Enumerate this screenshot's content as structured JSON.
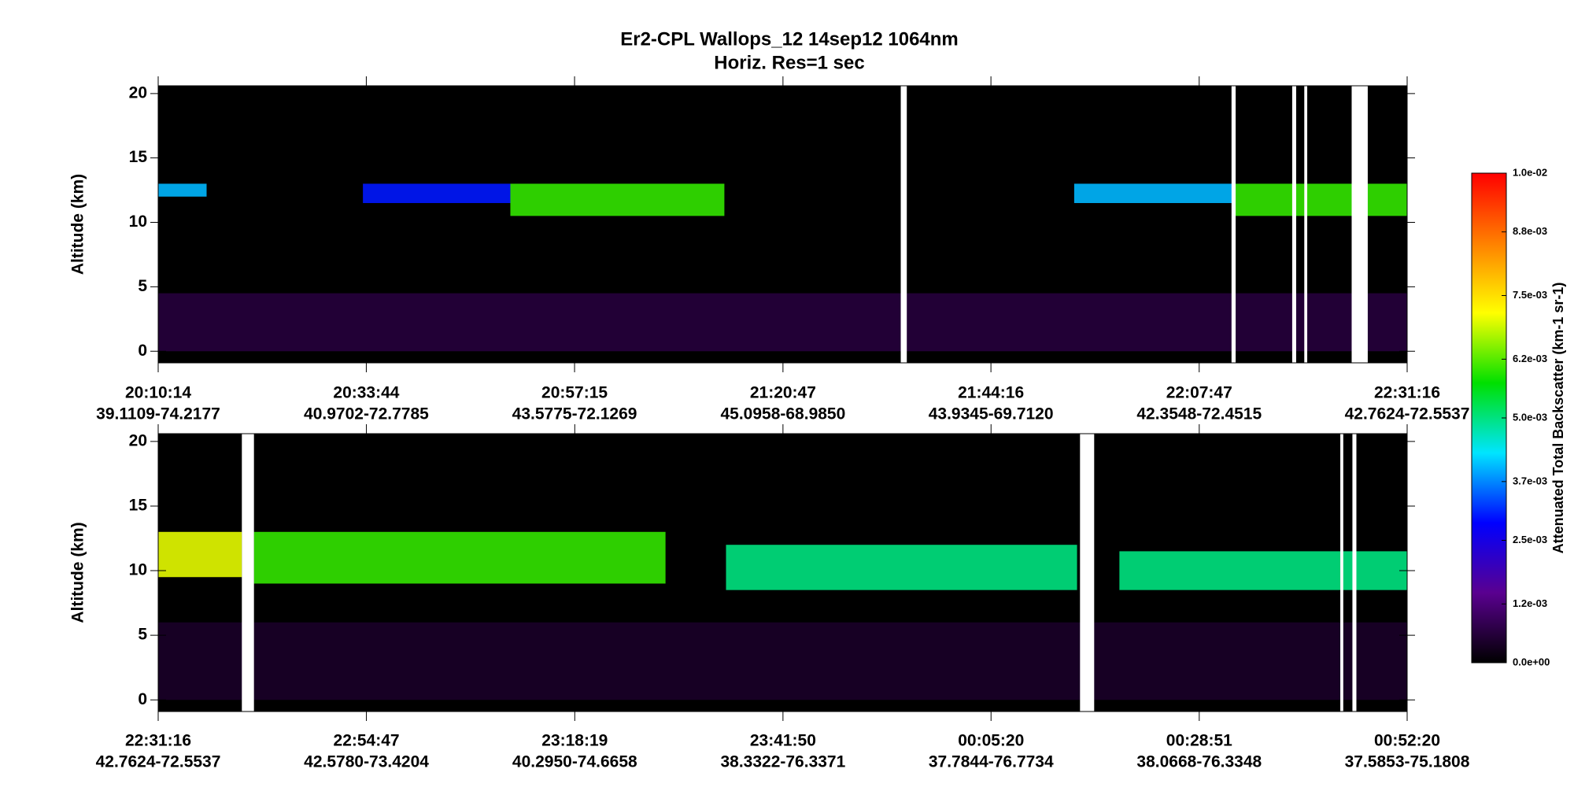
{
  "chart_data": [
    {
      "type": "curtain",
      "title": "Er2-CPL  Wallops_12  14sep12  1064nm",
      "subtitle": "Horiz. Res=1 sec",
      "ylabel": "Altitude (km)",
      "xlim": [
        72614,
        81076
      ],
      "ylim": [
        -0.9,
        20.6
      ],
      "yticks": [
        0,
        5,
        10,
        15,
        20
      ],
      "xticks": [
        {
          "value": 72614,
          "label": "20:10:14",
          "sublabel": "39.1109-74.2177"
        },
        {
          "value": 74024,
          "label": "20:33:44",
          "sublabel": "40.9702-72.7785"
        },
        {
          "value": 75435,
          "label": "20:57:15",
          "sublabel": "43.5775-72.1269"
        },
        {
          "value": 76847,
          "label": "21:20:47",
          "sublabel": "45.0958-68.9850"
        },
        {
          "value": 78256,
          "label": "21:44:16",
          "sublabel": "43.9345-69.7120"
        },
        {
          "value": 79667,
          "label": "22:07:47",
          "sublabel": "42.3548-72.4515"
        },
        {
          "value": 81076,
          "label": "22:31:16",
          "sublabel": "42.7624-72.5537"
        }
      ],
      "clouds": [
        {
          "x": [
            72614,
            81076
          ],
          "base": 0,
          "top": 4.5,
          "value": 0.0006
        },
        {
          "x": [
            72614,
            72942
          ],
          "base": 12,
          "top": 13,
          "value": 0.004
        },
        {
          "x": [
            74001,
            75000
          ],
          "base": 11.5,
          "top": 13,
          "value": 0.003
        },
        {
          "x": [
            75000,
            76450
          ],
          "base": 10.5,
          "top": 13,
          "value": 0.006
        },
        {
          "x": [
            78820,
            79900
          ],
          "base": 11.5,
          "top": 13,
          "value": 0.004
        },
        {
          "x": [
            79900,
            81076
          ],
          "base": 10.5,
          "top": 13,
          "value": 0.006
        }
      ],
      "gaps": [
        [
          77645,
          77686
        ],
        [
          79886,
          79914
        ],
        [
          80297,
          80324
        ],
        [
          80379,
          80399
        ],
        [
          80700,
          80809
        ]
      ],
      "colorbar": {
        "label": "Attenuated Total Backscatter (km-1 sr-1)",
        "lim": [
          0,
          0.01
        ],
        "colors": [
          "#000000",
          "#5a0090",
          "#0000ff",
          "#00e5ff",
          "#00e000",
          "#ffff00",
          "#ff8000",
          "#ff0000"
        ],
        "ticks": [
          {
            "value": 0,
            "label": "0.0e+00"
          },
          {
            "value": 0.0012,
            "label": "1.2e-03"
          },
          {
            "value": 0.0025,
            "label": "2.5e-03"
          },
          {
            "value": 0.0037,
            "label": "3.7e-03"
          },
          {
            "value": 0.005,
            "label": "5.0e-03"
          },
          {
            "value": 0.0062,
            "label": "6.2e-03"
          },
          {
            "value": 0.0075,
            "label": "7.5e-03"
          },
          {
            "value": 0.0088,
            "label": "8.8e-03"
          },
          {
            "value": 0.01,
            "label": "1.0e-02"
          }
        ]
      }
    },
    {
      "type": "curtain",
      "ylabel": "Altitude (km)",
      "xlim": [
        81076,
        89540
      ],
      "ylim": [
        -0.9,
        20.6
      ],
      "yticks": [
        0,
        5,
        10,
        15,
        20
      ],
      "xticks": [
        {
          "value": 81076,
          "label": "22:31:16",
          "sublabel": "42.7624-72.5537"
        },
        {
          "value": 82487,
          "label": "22:54:47",
          "sublabel": "42.5780-73.4204"
        },
        {
          "value": 83899,
          "label": "23:18:19",
          "sublabel": "40.2950-74.6658"
        },
        {
          "value": 85310,
          "label": "23:41:50",
          "sublabel": "38.3322-76.3371"
        },
        {
          "value": 86720,
          "label": "00:05:20",
          "sublabel": "37.7844-76.7734"
        },
        {
          "value": 88131,
          "label": "00:28:51",
          "sublabel": "38.0668-76.3348"
        },
        {
          "value": 89540,
          "label": "00:52:20",
          "sublabel": "37.5853-75.1808"
        }
      ],
      "clouds": [
        {
          "x": [
            81076,
            89540
          ],
          "base": 0,
          "top": 6,
          "value": 0.0004
        },
        {
          "x": [
            81076,
            81643
          ],
          "base": 9.5,
          "top": 13,
          "value": 0.007
        },
        {
          "x": [
            81725,
            84514
          ],
          "base": 9,
          "top": 13,
          "value": 0.006
        },
        {
          "x": [
            84924,
            87303
          ],
          "base": 8.5,
          "top": 12,
          "value": 0.005
        },
        {
          "x": [
            87590,
            89540
          ],
          "base": 8.5,
          "top": 11.5,
          "value": 0.005
        }
      ],
      "gaps": [
        [
          81643,
          81725
        ],
        [
          87323,
          87419
        ],
        [
          89087,
          89107
        ],
        [
          89169,
          89196
        ]
      ]
    }
  ]
}
